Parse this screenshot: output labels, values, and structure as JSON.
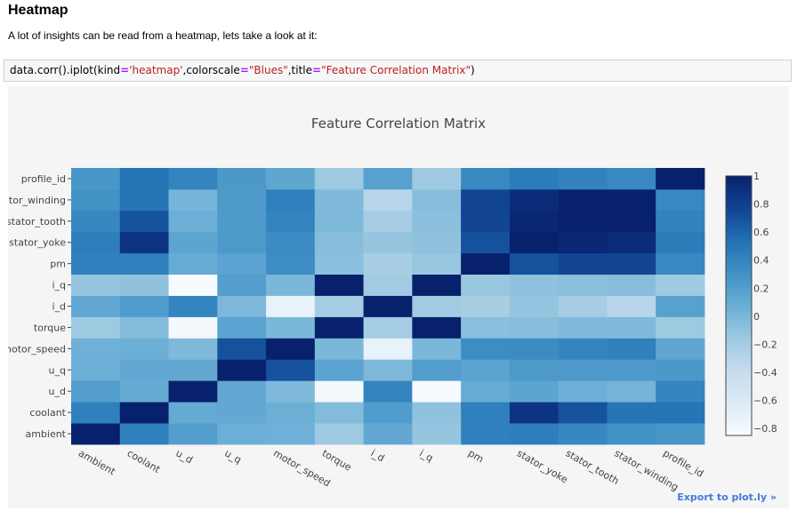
{
  "notebook": {
    "heading": "Heatmap",
    "paragraph": "A lot of insights can be read from a heatmap, lets take a look at it:",
    "code": {
      "prefix": "data.corr().iplot(kind",
      "eq1": "=",
      "str1": "'heatmap'",
      "mid1": ",colorscale",
      "eq2": "=",
      "str2": "\"Blues\"",
      "mid2": ",title",
      "eq3": "=",
      "str3": "\"Feature Correlation Matrix\"",
      "suffix": ")"
    },
    "export_link": "Export to plot.ly »"
  },
  "chart_data": {
    "type": "heatmap",
    "title": "Feature Correlation Matrix",
    "colorscale": "Blues",
    "x": [
      "ambient",
      "coolant",
      "u_d",
      "u_q",
      "motor_speed",
      "torque",
      "i_d",
      "i_q",
      "pm",
      "stator_yoke",
      "stator_tooth",
      "stator_winding",
      "profile_id"
    ],
    "y": [
      "ambient",
      "coolant",
      "u_d",
      "u_q",
      "motor_speed",
      "torque",
      "i_d",
      "i_q",
      "pm",
      "stator_yoke",
      "stator_tooth",
      "stator_winding",
      "profile_id"
    ],
    "y_tick_labels": [
      "ambient",
      "coolant",
      "u_d",
      "u_q",
      "motor_speed",
      "torque",
      "i_d",
      "i_q",
      "pm",
      "stator_yoke",
      "stator_tooth",
      "stator_winding",
      "profile_id"
    ],
    "y_tick_labels_shown": [
      "ambient",
      "coolant",
      "u_d",
      "u_q",
      "motor_speed",
      "torque",
      "i_d",
      "i_q",
      "pm",
      "stator_yoke",
      "stator_tooth",
      "ator_winding",
      "profile_id"
    ],
    "z": [
      [
        1.0,
        0.43,
        0.2,
        0.07,
        0.06,
        -0.16,
        0.12,
        -0.13,
        0.43,
        0.44,
        0.38,
        0.3,
        0.26
      ],
      [
        0.43,
        1.0,
        0.11,
        0.12,
        0.07,
        -0.04,
        0.22,
        -0.1,
        0.43,
        0.87,
        0.69,
        0.51,
        0.51
      ],
      [
        0.2,
        0.11,
        1.0,
        0.13,
        -0.02,
        -0.82,
        0.4,
        -0.85,
        0.1,
        0.15,
        0.07,
        0.02,
        0.4
      ],
      [
        0.07,
        0.12,
        0.13,
        1.0,
        0.7,
        0.16,
        -0.01,
        0.2,
        0.16,
        0.24,
        0.24,
        0.23,
        0.25
      ],
      [
        0.06,
        0.07,
        -0.02,
        0.7,
        1.0,
        0.0,
        -0.72,
        -0.0,
        0.33,
        0.34,
        0.4,
        0.43,
        0.14
      ],
      [
        -0.16,
        -0.04,
        -0.82,
        0.16,
        0.0,
        1.0,
        -0.2,
        1.0,
        -0.07,
        -0.06,
        -0.02,
        -0.02,
        -0.16
      ],
      [
        0.12,
        0.22,
        0.4,
        -0.01,
        -0.72,
        -0.2,
        1.0,
        -0.18,
        -0.22,
        -0.13,
        -0.21,
        -0.31,
        0.18
      ],
      [
        -0.13,
        -0.1,
        -0.85,
        0.2,
        -0.0,
        1.0,
        -0.18,
        1.0,
        -0.14,
        -0.1,
        -0.07,
        -0.06,
        -0.17
      ],
      [
        0.43,
        0.43,
        0.1,
        0.16,
        0.33,
        -0.07,
        -0.22,
        -0.14,
        1.0,
        0.7,
        0.76,
        0.76,
        0.37
      ],
      [
        0.44,
        0.87,
        0.15,
        0.24,
        0.34,
        -0.06,
        -0.13,
        -0.1,
        0.7,
        1.0,
        0.96,
        0.92,
        0.46
      ],
      [
        0.38,
        0.69,
        0.07,
        0.24,
        0.4,
        -0.02,
        -0.21,
        -0.07,
        0.76,
        0.96,
        1.0,
        0.99,
        0.41
      ],
      [
        0.3,
        0.51,
        0.02,
        0.23,
        0.43,
        -0.02,
        -0.31,
        -0.06,
        0.76,
        0.92,
        0.99,
        1.0,
        0.37
      ],
      [
        0.26,
        0.51,
        0.4,
        0.25,
        0.14,
        -0.16,
        0.18,
        -0.17,
        0.37,
        0.46,
        0.41,
        0.37,
        1.0
      ]
    ],
    "zlim": [
      -0.85,
      1.0
    ],
    "colorbar": {
      "tick_values": [
        1,
        0.8,
        0.6,
        0.4,
        0.2,
        0,
        -0.2,
        -0.4,
        -0.6,
        -0.8
      ],
      "tick_labels": [
        "1",
        "0.8",
        "0.6",
        "0.4",
        "0.2",
        "0",
        "−0.2",
        "−0.4",
        "−0.6",
        "−0.8"
      ]
    },
    "colors": {
      "scale_low": "#f7fbff",
      "scale_mid": "#6baed6",
      "scale_high": "#08216c",
      "background": "#f5f5f5",
      "tick_text": "#444444",
      "title_text": "#444444",
      "axis_text": "#444444"
    },
    "grid": false,
    "legend": "colorbar-right"
  }
}
